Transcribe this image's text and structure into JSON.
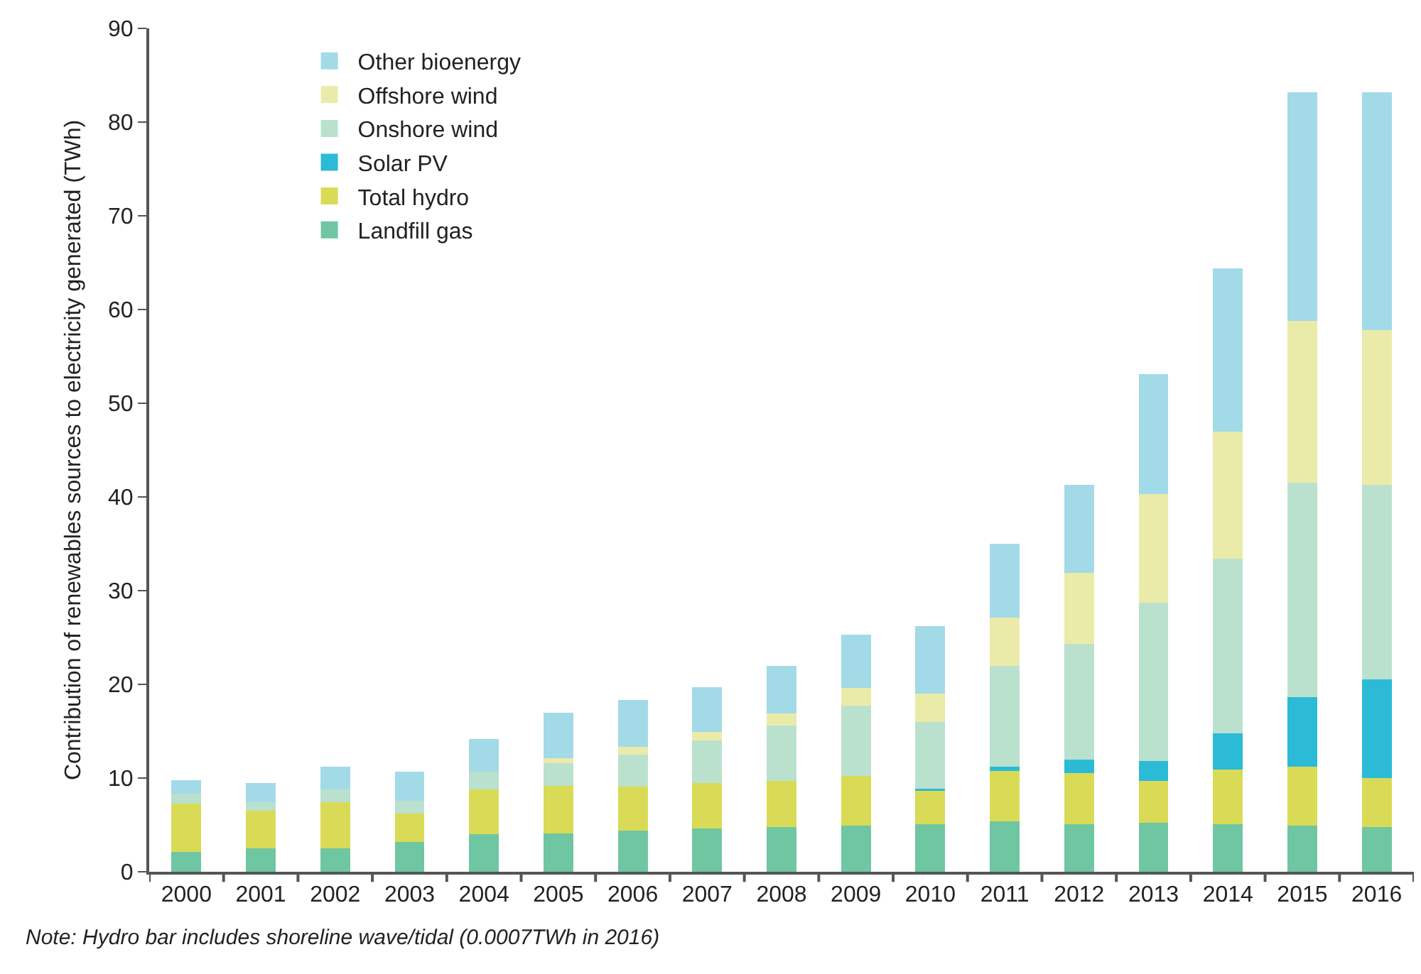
{
  "chart_data": {
    "type": "bar",
    "stacked": true,
    "ylabel": "Contribution of renewables sources to electricity generated (TWh)",
    "categories": [
      "2000",
      "2001",
      "2002",
      "2003",
      "2004",
      "2005",
      "2006",
      "2007",
      "2008",
      "2009",
      "2010",
      "2011",
      "2012",
      "2013",
      "2014",
      "2015",
      "2016"
    ],
    "series": [
      {
        "name": "Landfill gas",
        "color": "#6fc6a2",
        "values": [
          2.1,
          2.5,
          2.5,
          3.2,
          4.0,
          4.1,
          4.4,
          4.6,
          4.8,
          4.9,
          5.1,
          5.4,
          5.1,
          5.2,
          5.1,
          4.9,
          4.8
        ]
      },
      {
        "name": "Total hydro",
        "color": "#d9db56",
        "values": [
          5.2,
          4.0,
          4.9,
          3.0,
          4.8,
          5.1,
          4.7,
          4.9,
          4.9,
          5.3,
          3.6,
          5.5,
          5.4,
          4.5,
          5.8,
          6.3,
          5.2
        ]
      },
      {
        "name": "Solar PV",
        "color": "#2bbbd7",
        "values": [
          0,
          0,
          0,
          0,
          0,
          0,
          0,
          0,
          0,
          0,
          0.2,
          0.3,
          1.5,
          2.1,
          3.9,
          7.4,
          10.5
        ]
      },
      {
        "name": "Onshore wind",
        "color": "#bae1cd",
        "values": [
          1.0,
          0.9,
          1.4,
          1.4,
          1.9,
          2.4,
          3.4,
          4.5,
          5.9,
          7.5,
          7.1,
          10.8,
          12.3,
          16.9,
          18.6,
          22.9,
          20.8
        ]
      },
      {
        "name": "Offshore wind",
        "color": "#ebeba9",
        "values": [
          0,
          0,
          0,
          0,
          0,
          0.5,
          0.8,
          0.9,
          1.3,
          1.9,
          3.0,
          5.1,
          7.6,
          11.6,
          13.6,
          17.3,
          16.5
        ]
      },
      {
        "name": "Other bioenergy",
        "color": "#a3dae8",
        "values": [
          1.5,
          2.1,
          2.4,
          3.1,
          3.5,
          4.9,
          5.0,
          4.8,
          5.1,
          5.7,
          7.2,
          7.9,
          9.4,
          12.8,
          17.4,
          24.4,
          25.4
        ]
      }
    ],
    "ylim": [
      0,
      90
    ],
    "yticks": [
      0,
      10,
      20,
      30,
      40,
      50,
      60,
      70,
      80,
      90
    ],
    "legend": "top left",
    "annotations": [
      "Note: Hydro bar includes shoreline wave/tidal (0.0007TWh in 2016)"
    ]
  }
}
